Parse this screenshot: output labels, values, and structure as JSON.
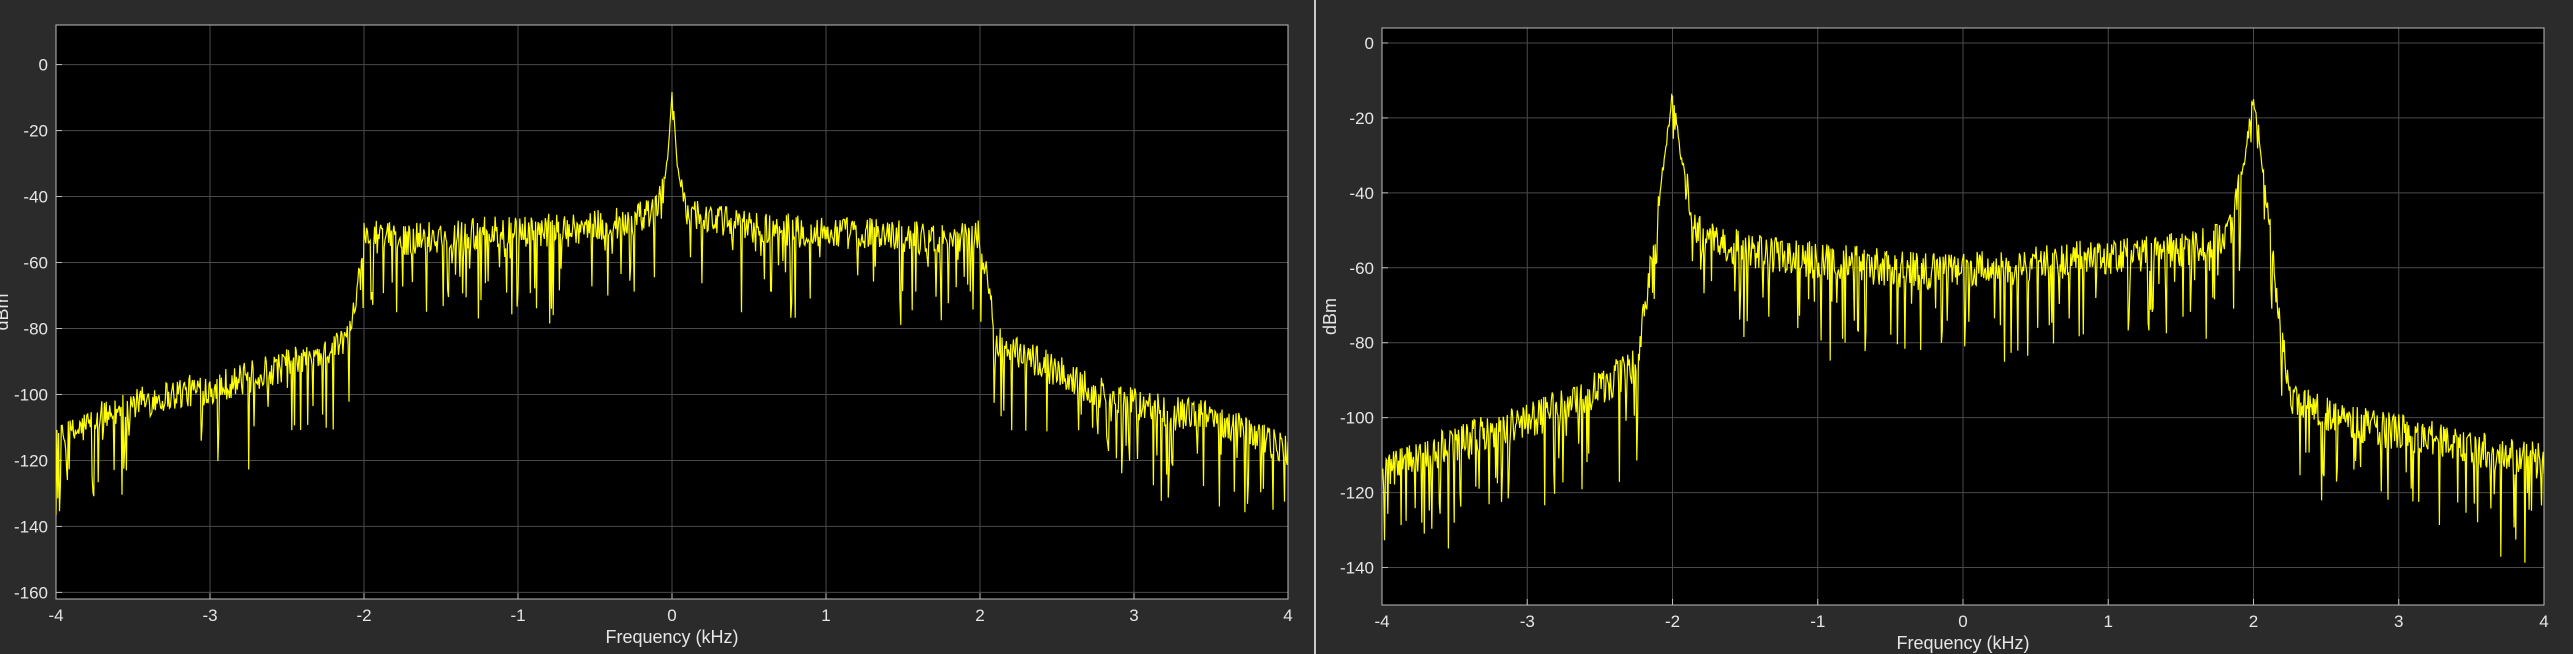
{
  "colors": {
    "background": "#2b2b2b",
    "plot_background": "#000000",
    "grid": "#4a4a4a",
    "axis_text": "#e6e6e6",
    "trace": "#ffff00"
  },
  "chart_data": [
    {
      "type": "line",
      "xlabel": "Frequency (kHz)",
      "ylabel": "dBm",
      "xlim": [
        -4,
        4
      ],
      "ylim": [
        -162,
        12
      ],
      "xticks": [
        -4,
        -3,
        -2,
        -1,
        0,
        1,
        2,
        3,
        4
      ],
      "yticks": [
        0,
        -20,
        -40,
        -60,
        -80,
        -100,
        -120,
        -140,
        -160
      ],
      "grid": true,
      "series": [
        {
          "color": "#ffff00",
          "x": [
            -4.0,
            -3.75,
            -3.5,
            -3.25,
            -3.0,
            -2.75,
            -2.5,
            -2.25,
            -2.1,
            -2.0,
            -1.75,
            -1.5,
            -1.25,
            -1.0,
            -0.75,
            -0.5,
            -0.25,
            -0.1,
            -0.03,
            0.0,
            0.03,
            0.1,
            0.25,
            0.5,
            0.75,
            1.0,
            1.25,
            1.5,
            1.75,
            2.0,
            2.1,
            2.25,
            2.5,
            2.75,
            3.0,
            3.25,
            3.5,
            3.75,
            4.0
          ],
          "y": [
            -115,
            -108,
            -103,
            -100,
            -98,
            -95,
            -91,
            -87,
            -83,
            -52,
            -53,
            -52,
            -51,
            -51,
            -50,
            -49,
            -47,
            -44,
            -30,
            -7,
            -30,
            -44,
            -47,
            -49,
            -50,
            -51,
            -51,
            -52,
            -53,
            -52,
            -83,
            -87,
            -93,
            -99,
            -103,
            -105,
            -107,
            -111,
            -117
          ]
        }
      ]
    },
    {
      "type": "line",
      "xlabel": "Frequency (kHz)",
      "ylabel": "dBm",
      "xlim": [
        -4,
        4
      ],
      "ylim": [
        -150,
        4
      ],
      "xticks": [
        -4,
        -3,
        -2,
        -1,
        0,
        1,
        2,
        3,
        4
      ],
      "yticks": [
        0,
        -20,
        -40,
        -60,
        -80,
        -100,
        -120,
        -140
      ],
      "grid": true,
      "series": [
        {
          "color": "#ffff00",
          "x": [
            -4.0,
            -3.75,
            -3.5,
            -3.25,
            -3.0,
            -2.75,
            -2.5,
            -2.25,
            -2.15,
            -2.05,
            -2.0,
            -1.95,
            -1.85,
            -1.75,
            -1.5,
            -1.25,
            -1.0,
            -0.75,
            -0.5,
            -0.25,
            0.0,
            0.25,
            0.5,
            0.75,
            1.0,
            1.25,
            1.5,
            1.75,
            1.85,
            1.95,
            2.0,
            2.05,
            2.15,
            2.25,
            2.5,
            2.75,
            3.0,
            3.25,
            3.5,
            3.75,
            4.0
          ],
          "y": [
            -115,
            -111,
            -107,
            -104,
            -101,
            -97,
            -92,
            -86,
            -60,
            -28,
            -14,
            -28,
            -50,
            -53,
            -55,
            -57,
            -58,
            -59,
            -60,
            -61,
            -61,
            -60,
            -59,
            -58,
            -57,
            -56,
            -55,
            -53,
            -50,
            -28,
            -14,
            -28,
            -65,
            -95,
            -99,
            -102,
            -104,
            -106,
            -108,
            -110,
            -112
          ]
        }
      ]
    }
  ]
}
